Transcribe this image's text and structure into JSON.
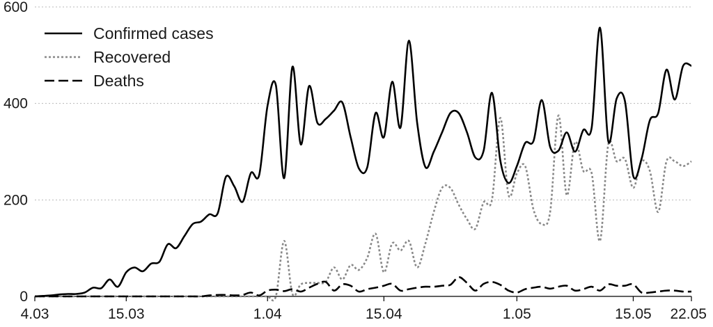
{
  "chart_data": {
    "type": "line",
    "title": "",
    "xlabel": "",
    "ylabel": "",
    "ylim": [
      0,
      600
    ],
    "yticks": [
      0,
      200,
      400,
      600
    ],
    "x_ticks": [
      {
        "day": 0,
        "label": "4.03"
      },
      {
        "day": 11,
        "label": "15.03"
      },
      {
        "day": 28,
        "label": "1.04"
      },
      {
        "day": 42,
        "label": "15.04"
      },
      {
        "day": 58,
        "label": "1.05"
      },
      {
        "day": 72,
        "label": "15.05"
      },
      {
        "day": 79,
        "label": "22.05"
      }
    ],
    "xlim": [
      0,
      79
    ],
    "grid": "horizontal dotted",
    "legend": "top-left",
    "series": [
      {
        "name": "Confirmed cases",
        "color": "#000000",
        "style": "solid",
        "x": [
          0,
          1,
          2,
          3,
          4,
          5,
          6,
          7,
          8,
          9,
          10,
          11,
          12,
          13,
          14,
          15,
          16,
          17,
          18,
          19,
          20,
          21,
          22,
          23,
          24,
          25,
          26,
          27,
          28,
          29,
          30,
          31,
          32,
          33,
          34,
          35,
          36,
          37,
          38,
          39,
          40,
          41,
          42,
          43,
          44,
          45,
          46,
          47,
          48,
          49,
          50,
          51,
          52,
          53,
          54,
          55,
          56,
          57,
          58,
          59,
          60,
          61,
          62,
          63,
          64,
          65,
          66,
          67,
          68,
          69,
          70,
          71,
          72,
          73,
          74,
          75,
          76,
          77,
          78,
          79
        ],
        "values": [
          0,
          1,
          2,
          4,
          5,
          5,
          8,
          18,
          17,
          35,
          20,
          50,
          60,
          52,
          68,
          72,
          108,
          100,
          125,
          150,
          155,
          170,
          172,
          248,
          228,
          196,
          256,
          252,
          395,
          438,
          245,
          476,
          315,
          436,
          360,
          368,
          385,
          402,
          330,
          265,
          268,
          380,
          330,
          445,
          350,
          530,
          360,
          268,
          300,
          340,
          380,
          380,
          340,
          288,
          302,
          422,
          282,
          235,
          270,
          318,
          322,
          407,
          310,
          302,
          340,
          300,
          345,
          350,
          557,
          322,
          410,
          405,
          250,
          285,
          365,
          380,
          470,
          408,
          478,
          478
        ]
      },
      {
        "name": "Recovered",
        "color": "#888888",
        "style": "dotted",
        "x": [
          0,
          1,
          2,
          3,
          4,
          5,
          6,
          7,
          8,
          9,
          10,
          11,
          12,
          13,
          14,
          15,
          16,
          17,
          18,
          19,
          20,
          21,
          22,
          23,
          24,
          25,
          26,
          27,
          28,
          29,
          30,
          31,
          32,
          33,
          34,
          35,
          36,
          37,
          38,
          39,
          40,
          41,
          42,
          43,
          44,
          45,
          46,
          47,
          48,
          49,
          50,
          51,
          52,
          53,
          54,
          55,
          56,
          57,
          58,
          59,
          60,
          61,
          62,
          63,
          64,
          65,
          66,
          67,
          68,
          69,
          70,
          71,
          72,
          73,
          74,
          75,
          76,
          77,
          78,
          79
        ],
        "values": [
          0,
          0,
          0,
          0,
          0,
          0,
          0,
          0,
          0,
          0,
          0,
          0,
          0,
          0,
          0,
          0,
          0,
          0,
          0,
          0,
          0,
          0,
          0,
          0,
          0,
          0,
          0,
          0,
          0,
          0,
          115,
          5,
          25,
          28,
          28,
          30,
          60,
          35,
          65,
          55,
          80,
          130,
          50,
          110,
          95,
          115,
          60,
          110,
          175,
          225,
          225,
          190,
          160,
          140,
          195,
          200,
          370,
          210,
          255,
          270,
          180,
          150,
          175,
          375,
          210,
          320,
          260,
          255,
          115,
          315,
          280,
          285,
          225,
          280,
          260,
          175,
          280,
          280,
          270,
          280
        ]
      },
      {
        "name": "Deaths",
        "color": "#000000",
        "style": "dashed",
        "x": [
          0,
          1,
          2,
          3,
          4,
          5,
          6,
          7,
          8,
          9,
          10,
          11,
          12,
          13,
          14,
          15,
          16,
          17,
          18,
          19,
          20,
          21,
          22,
          23,
          24,
          25,
          26,
          27,
          28,
          29,
          30,
          31,
          32,
          33,
          34,
          35,
          36,
          37,
          38,
          39,
          40,
          41,
          42,
          43,
          44,
          45,
          46,
          47,
          48,
          49,
          50,
          51,
          52,
          53,
          54,
          55,
          56,
          57,
          58,
          59,
          60,
          61,
          62,
          63,
          64,
          65,
          66,
          67,
          68,
          69,
          70,
          71,
          72,
          73,
          74,
          75,
          76,
          77,
          78,
          79
        ],
        "values": [
          0,
          0,
          0,
          0,
          0,
          0,
          0,
          0,
          0,
          0,
          0,
          0,
          0,
          0,
          0,
          0,
          0,
          0,
          0,
          0,
          0,
          2,
          3,
          3,
          2,
          3,
          8,
          2,
          12,
          14,
          11,
          15,
          10,
          18,
          26,
          30,
          12,
          25,
          22,
          10,
          15,
          18,
          22,
          26,
          12,
          15,
          18,
          20,
          20,
          22,
          24,
          40,
          28,
          12,
          26,
          30,
          24,
          12,
          8,
          15,
          18,
          20,
          16,
          20,
          22,
          12,
          15,
          20,
          12,
          25,
          22,
          22,
          25,
          8,
          8,
          10,
          12,
          12,
          10,
          10
        ]
      }
    ]
  }
}
